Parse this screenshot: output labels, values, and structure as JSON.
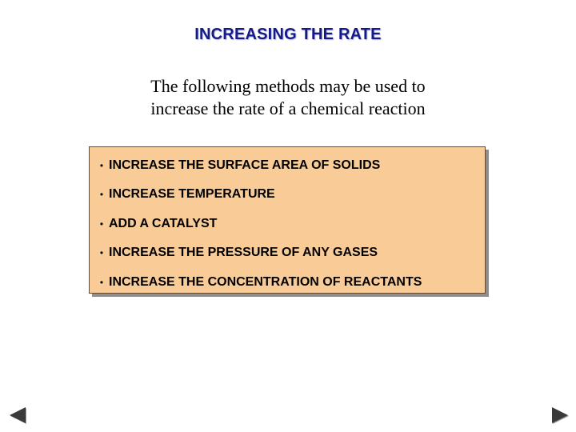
{
  "slide": {
    "title": "INCREASING THE RATE",
    "intro_line1": "The following methods may be used to",
    "intro_line2": "increase the rate of a chemical reaction"
  },
  "methods": {
    "bullet": "•",
    "items": [
      "INCREASE THE SURFACE AREA OF SOLIDS",
      "INCREASE TEMPERATURE",
      "ADD A CATALYST",
      "INCREASE THE PRESSURE OF ANY GASES",
      "INCREASE THE CONCENTRATION OF REACTANTS"
    ]
  },
  "navigation": {
    "prev_icon": "triangle-left-icon",
    "next_icon": "triangle-right-icon"
  },
  "colors": {
    "title": "#141a8c",
    "box_fill": "#f9cc97",
    "box_shadow": "#8e8e8e",
    "arrow": "#3a3a3a"
  }
}
